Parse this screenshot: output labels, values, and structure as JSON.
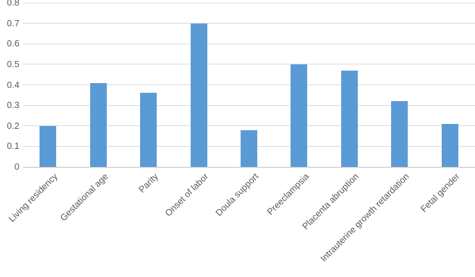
{
  "chart_data": {
    "type": "bar",
    "title": "",
    "xlabel": "",
    "ylabel": "",
    "categories": [
      "Living residency",
      "Gestational age",
      "Parity",
      "Onset of labor",
      "Doula support",
      "Preeclampsia",
      "Placenta abruption",
      "Intrauterine growth retardation",
      "Fetal gender"
    ],
    "values": [
      0.2,
      0.41,
      0.36,
      0.7,
      0.18,
      0.5,
      0.47,
      0.32,
      0.21
    ],
    "ylim": [
      0,
      0.8
    ],
    "ytick_labels": [
      "0",
      "0.1",
      "0.2",
      "0.3",
      "0.4",
      "0.5",
      "0.6",
      "0.7",
      "0.8"
    ],
    "grid": true,
    "legend": false,
    "x_label_rotation_deg": 45,
    "colors": {
      "bar_fill": "#5B9BD5",
      "gridline": "#D9D9D9",
      "axis_line": "#BFBFBF",
      "tick_label": "#595959",
      "background": "#FFFFFF"
    }
  }
}
